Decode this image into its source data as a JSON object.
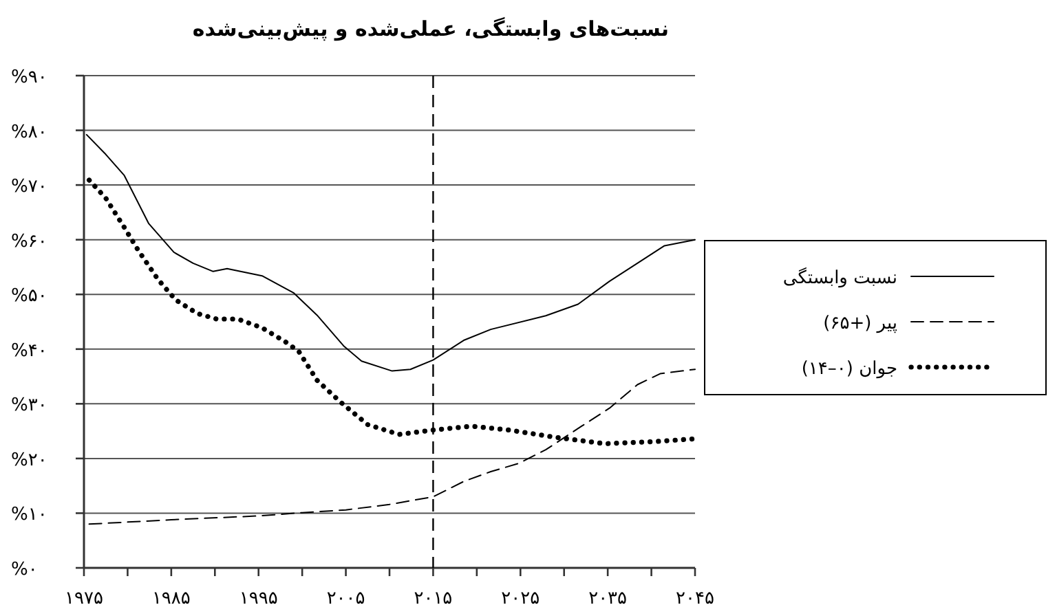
{
  "chart_data": {
    "type": "line",
    "title": "نسبت‌های وابستگی، عملی‌شده و پیش‌بینی‌شده",
    "xlim": [
      1975,
      2045
    ],
    "xticks": [
      {
        "value": 1975,
        "label": "۱۹۷۵"
      },
      {
        "value": 1980,
        "label": null
      },
      {
        "value": 1985,
        "label": "۱۹۸۵"
      },
      {
        "value": 1990,
        "label": null
      },
      {
        "value": 1995,
        "label": "۱۹۹۵"
      },
      {
        "value": 2000,
        "label": null
      },
      {
        "value": 2005,
        "label": "۲۰۰۵"
      },
      {
        "value": 2010,
        "label": null
      },
      {
        "value": 2015,
        "label": "۲۰۱۵"
      },
      {
        "value": 2020,
        "label": null
      },
      {
        "value": 2025,
        "label": "۲۰۲۵"
      },
      {
        "value": 2030,
        "label": null
      },
      {
        "value": 2035,
        "label": "۲۰۳۵"
      },
      {
        "value": 2040,
        "label": null
      },
      {
        "value": 2045,
        "label": "۲۰۴۵"
      }
    ],
    "ylim": [
      0,
      90
    ],
    "yticks": [
      {
        "value": 0,
        "label": "%۰"
      },
      {
        "value": 10,
        "label": "%۱۰"
      },
      {
        "value": 20,
        "label": "%۲۰"
      },
      {
        "value": 30,
        "label": "%۳۰"
      },
      {
        "value": 40,
        "label": "%۴۰"
      },
      {
        "value": 50,
        "label": "%۵۰"
      },
      {
        "value": 60,
        "label": "%۶۰"
      },
      {
        "value": 70,
        "label": "%۷۰"
      },
      {
        "value": 80,
        "label": "%۸۰"
      },
      {
        "value": 90,
        "label": "%۹۰"
      }
    ],
    "grid": "y",
    "legend": "right",
    "ref_lines": [
      {
        "axis": "x",
        "value": 2015,
        "line_style": "dashed",
        "color": "#000000"
      }
    ],
    "series": [
      {
        "name": "نسبت وابستگی",
        "color": "#000000",
        "line_style": "solid",
        "x": [
          1975.3,
          1977.5,
          1979.6,
          1982.4,
          1985.3,
          1987.5,
          1989.8,
          1991.4,
          1995.4,
          1999,
          2001.7,
          2004.8,
          2006.8,
          2010.3,
          2012.4,
          2015,
          2018.5,
          2021.6,
          2027.9,
          2031.6,
          2035.2,
          2038.4,
          2041.5,
          2045
        ],
        "values": [
          79.2,
          75.6,
          71.8,
          63,
          57.7,
          55.7,
          54.2,
          54.7,
          53.4,
          50.3,
          46.2,
          40.5,
          37.8,
          36,
          36.3,
          38,
          41.6,
          43.6,
          46.1,
          48.2,
          52.4,
          55.7,
          58.9,
          60
        ]
      },
      {
        "name": "پیر (+۶۵)",
        "color": "#000000",
        "line_style": "dashed",
        "x": [
          1975.6,
          1985,
          1995,
          2000,
          2005,
          2010,
          2015,
          2018.5,
          2021.6,
          2024.8,
          2027.9,
          2032,
          2035.2,
          2038.4,
          2041,
          2045
        ],
        "values": [
          8,
          8.8,
          9.5,
          10.1,
          10.6,
          11.6,
          13,
          15.8,
          17.6,
          19.1,
          21.6,
          25.9,
          29.2,
          33.5,
          35.5,
          36.3
        ]
      },
      {
        "name": "جوان (۰–۱۴)",
        "color": "#000000",
        "line_style": "dotted",
        "x": [
          1975.6,
          1977.5,
          1979.6,
          1981.2,
          1983.5,
          1985.5,
          1988,
          1990.2,
          1992.6,
          1995.4,
          1998.1,
          1999.6,
          2001.7,
          2004.4,
          2007.5,
          2011.1,
          2015,
          2019.4,
          2023.7,
          2028.9,
          2034.7,
          2040.5,
          2045
        ],
        "values": [
          70.9,
          67.6,
          62.3,
          58.1,
          52.7,
          49,
          46.5,
          45.5,
          45.5,
          43.9,
          41.3,
          39.6,
          34.3,
          30.3,
          26.2,
          24.4,
          25.2,
          25.9,
          25.2,
          23.9,
          22.7,
          23.1,
          23.6
        ]
      }
    ]
  }
}
